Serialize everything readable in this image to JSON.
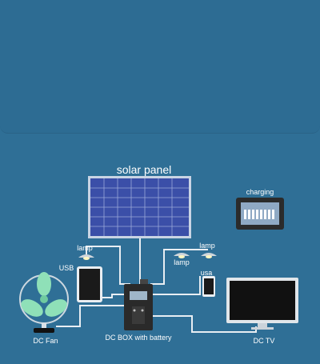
{
  "labels": {
    "solar_panel": "solar panel",
    "charging": "charging",
    "lamp_left": "lamp",
    "lamp_mid": "lamp",
    "lamp_right": "lamp",
    "usb_left": "USB",
    "usb_right": "usa",
    "fan": "DC Fan",
    "box": "DC BOX with battery",
    "tv": "DC TV"
  },
  "colors": {
    "background": "#2f6f96",
    "panel_blue": "#3b4fa8",
    "wire": "#e8eef3",
    "fan_green": "#8fe0b8",
    "box_dark": "#2a2a2a",
    "tv_screen": "#111111"
  },
  "icons": [
    "solar-panel-icon",
    "charge-controller-icon",
    "lamp-icon",
    "tablet-icon",
    "phone-icon",
    "fan-icon",
    "battery-box-icon",
    "tv-icon"
  ]
}
